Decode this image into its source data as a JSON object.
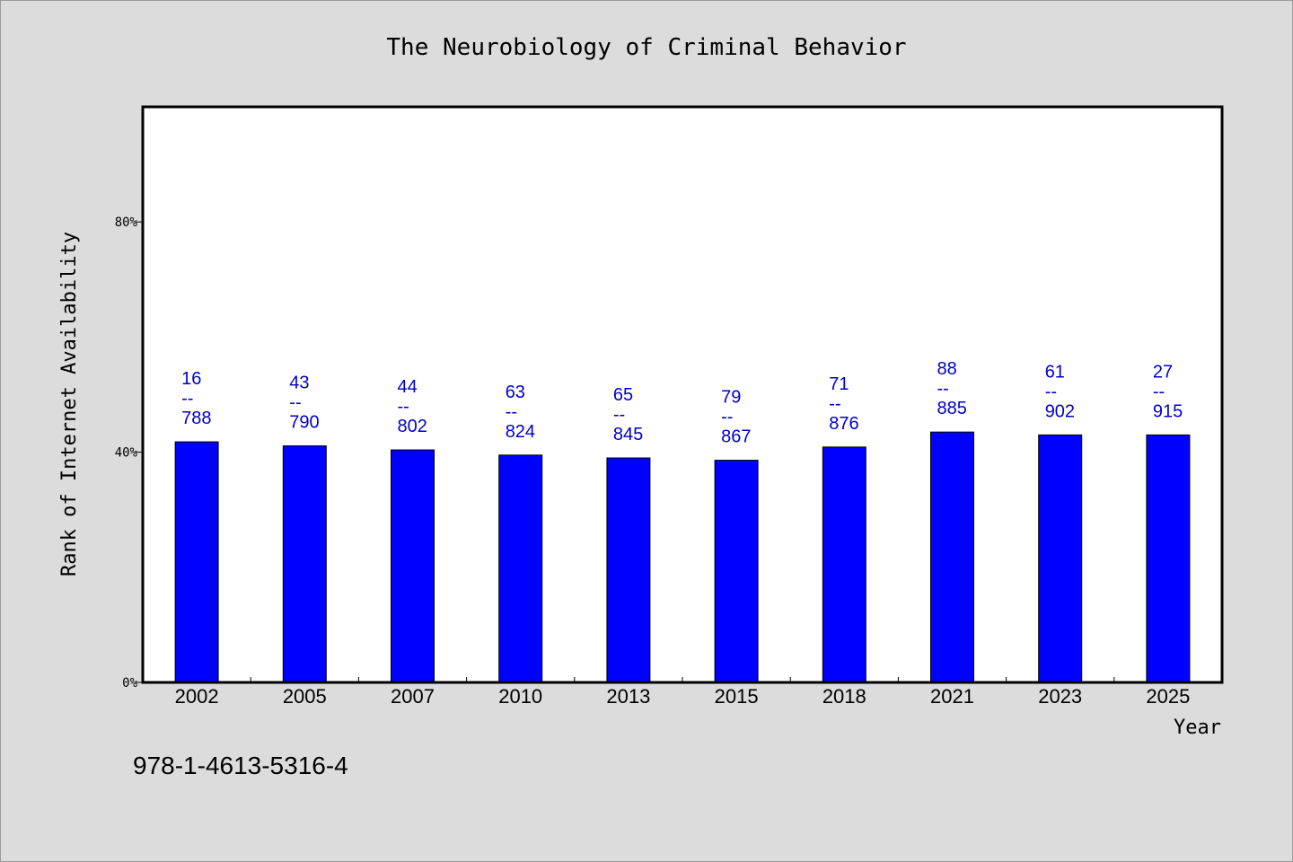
{
  "chart_data": {
    "type": "bar",
    "title": "The Neurobiology of Criminal Behavior",
    "xlabel": "Year",
    "ylabel": "Rank of Internet Availability",
    "ylim": [
      0,
      100
    ],
    "y_ticks": [
      {
        "value": 0,
        "label": "0%"
      },
      {
        "value": 40,
        "label": "40%"
      },
      {
        "value": 80,
        "label": "80%"
      }
    ],
    "categories": [
      "2002",
      "2005",
      "2007",
      "2010",
      "2013",
      "2015",
      "2018",
      "2021",
      "2023",
      "2025"
    ],
    "values": [
      41.8,
      41.1,
      40.4,
      39.5,
      39.0,
      38.6,
      40.9,
      43.5,
      43.0,
      43.0
    ],
    "data_labels": [
      {
        "top": "16",
        "sep": "--",
        "bottom": "788"
      },
      {
        "top": "43",
        "sep": "--",
        "bottom": "790"
      },
      {
        "top": "44",
        "sep": "--",
        "bottom": "802"
      },
      {
        "top": "63",
        "sep": "--",
        "bottom": "824"
      },
      {
        "top": "65",
        "sep": "--",
        "bottom": "845"
      },
      {
        "top": "79",
        "sep": "--",
        "bottom": "867"
      },
      {
        "top": "71",
        "sep": "--",
        "bottom": "876"
      },
      {
        "top": "88",
        "sep": "--",
        "bottom": "885"
      },
      {
        "top": "61",
        "sep": "--",
        "bottom": "902"
      },
      {
        "top": "27",
        "sep": "--",
        "bottom": "915"
      }
    ],
    "bar_color": "#0000ff",
    "label_color": "#0000cc",
    "grid": false,
    "legend": "none"
  },
  "footer": {
    "isbn": "978-1-4613-5316-4"
  }
}
